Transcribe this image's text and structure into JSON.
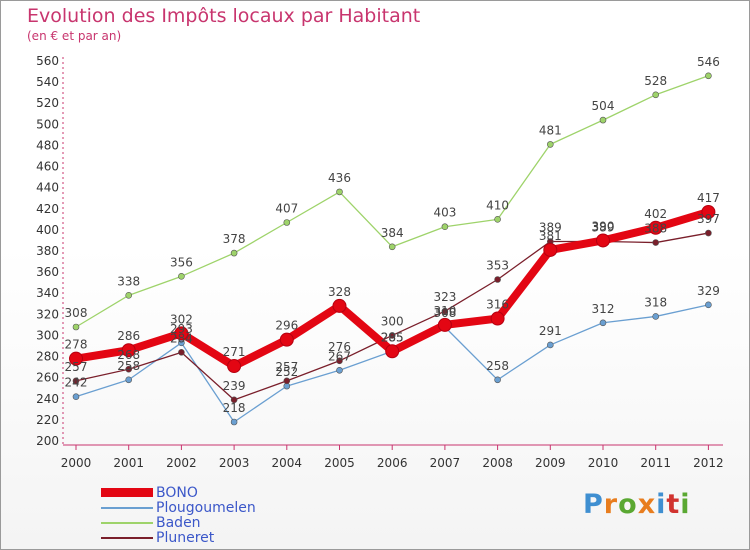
{
  "chart_data": {
    "type": "line",
    "title": "Evolution des Impôts locaux par Habitant",
    "subtitle": "(en € et par an)",
    "xlabel": "",
    "ylabel": "",
    "categories": [
      "2000",
      "2001",
      "2002",
      "2003",
      "2004",
      "2005",
      "2006",
      "2007",
      "2008",
      "2009",
      "2010",
      "2011",
      "2012"
    ],
    "ylim": [
      200,
      560
    ],
    "yticks": [
      200,
      220,
      240,
      260,
      280,
      300,
      320,
      340,
      360,
      380,
      400,
      420,
      440,
      460,
      480,
      500,
      520,
      540,
      560
    ],
    "grid": false,
    "legend_position": "bottom-left",
    "series": [
      {
        "name": "BONO",
        "color": "#e30613",
        "values": [
          278,
          286,
          302,
          271,
          296,
          328,
          285,
          310,
          316,
          381,
          390,
          402,
          417
        ]
      },
      {
        "name": "Plougoumelen",
        "color": "#6a9fd1",
        "values": [
          242,
          258,
          293,
          218,
          252,
          267,
          285,
          308,
          258,
          291,
          312,
          318,
          329
        ]
      },
      {
        "name": "Baden",
        "color": "#9ed36a",
        "values": [
          308,
          338,
          356,
          378,
          407,
          436,
          384,
          403,
          410,
          481,
          504,
          528,
          546
        ]
      },
      {
        "name": "Pluneret",
        "color": "#7a1f2b",
        "values": [
          257,
          268,
          284,
          239,
          257,
          276,
          300,
          323,
          353,
          389,
          389,
          388,
          397
        ]
      }
    ]
  },
  "logo": {
    "letters": [
      "P",
      "r",
      "o",
      "x",
      "i",
      "t",
      "i"
    ],
    "colors": [
      "#3f8fd1",
      "#e87d1e",
      "#5aa832",
      "#e87d1e",
      "#3f8fd1",
      "#d1332f",
      "#5aa832"
    ]
  }
}
